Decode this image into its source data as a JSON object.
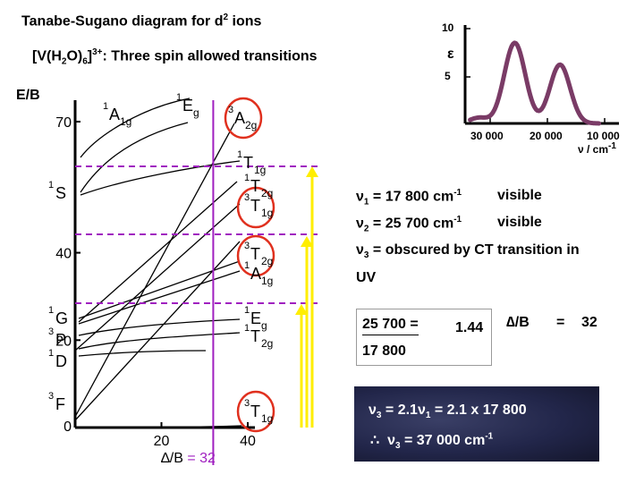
{
  "title": "Tanabe-Sugano diagram for d",
  "title_sup": "2",
  "title_tail": " ions",
  "subtitle": {
    "a": "[V(H",
    "b": "2",
    "c": "O)",
    "d": "6",
    "e": "]",
    "f": "3+",
    "g": ":  Three spin allowed transitions"
  },
  "y_axis_label": "E/B",
  "y_ticks": [
    "70",
    "40",
    "20",
    "0"
  ],
  "y_tick_values": [
    70,
    40,
    20,
    0
  ],
  "x_ticks": [
    "20",
    "40"
  ],
  "x_tick_values": [
    20,
    40
  ],
  "x_axis_label": "∆/B",
  "x_axis_value": " = 32",
  "delta_b_line_value": 32,
  "left_terms": [
    {
      "main": "S",
      "sup": "1"
    },
    {
      "main": "G",
      "sup": "1"
    },
    {
      "main": "P",
      "sup": "3"
    },
    {
      "main": "D",
      "sup": "1"
    },
    {
      "main": "F",
      "sup": "3"
    }
  ],
  "right_terms": [
    {
      "main": "E",
      "sub": "g",
      "sup": "1",
      "circled": false
    },
    {
      "main": "A",
      "sub": "1g",
      "sup": "1",
      "circled": false
    },
    {
      "main": "A",
      "sub": "2g",
      "sup": "3",
      "circled": true
    },
    {
      "main": "T",
      "sub": "1g",
      "sup": "1",
      "circled": false
    },
    {
      "main": "T",
      "sub": "2g",
      "sup": "1",
      "circled": false
    },
    {
      "main": "T",
      "sub": "1g",
      "sup": "3",
      "circled": true
    },
    {
      "main": "T",
      "sub": "2g",
      "sup": "3",
      "circled": true
    },
    {
      "main": "A",
      "sub": "1g",
      "sup": "1",
      "circled": false
    },
    {
      "main": "E",
      "sub": "g",
      "sup": "1",
      "circled": false
    },
    {
      "main": "T",
      "sub": "2g",
      "sup": "1",
      "circled": false
    },
    {
      "main": "T",
      "sub": "1g",
      "sup": "3",
      "circled": true
    }
  ],
  "spectrum": {
    "y_ticks": [
      "10",
      "5"
    ],
    "y_symbol": "ε",
    "x_ticks": [
      "30 000",
      "20 000",
      "10 000"
    ],
    "x_label": "ν / cm",
    "x_label_sup": "-1",
    "peaks_cm1": [
      17800,
      25700
    ],
    "line_color": "#7a3b66"
  },
  "transitions": [
    {
      "sym": "ν",
      "sub": "1",
      "text": " = 17 800 cm",
      "sup": "-1",
      "region": "visible"
    },
    {
      "sym": "ν",
      "sub": "2",
      "text": " = 25 700 cm",
      "sup": "-1",
      "region": "visible"
    },
    {
      "sym": "ν",
      "sub": "3",
      "text": " = obscured by CT transition in",
      "line2": "UV"
    }
  ],
  "ratio": {
    "numerator": "25 700  =",
    "denominator": "17 800",
    "value": "1.44",
    "label": "∆/B",
    "eq": "=",
    "result": "32"
  },
  "result_box": {
    "line1": {
      "sym": "ν",
      "sub": "3",
      "mid": " = 2.1",
      "sym2": "ν",
      "sub2": "1",
      "tail": " = 2.1 x 17 800"
    },
    "line2": {
      "therefore": "∴",
      "sym": "ν",
      "sub": "3",
      "tail": " = 37 000 cm",
      "sup": "-1"
    }
  },
  "colors": {
    "dashed_line": "#a020c0",
    "vertical_line": "#a020c0",
    "arrow": "#ffee00",
    "circle": "#e0301e",
    "spectrum": "#7a3b66",
    "text_purple": "#a020c0"
  }
}
